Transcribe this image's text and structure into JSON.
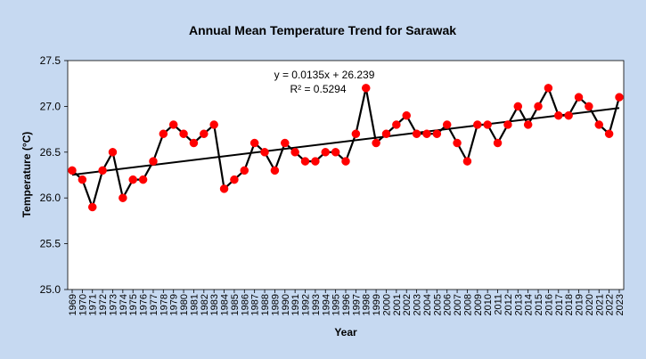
{
  "chart_data": {
    "type": "line",
    "title": "Annual Mean Temperature Trend for Sarawak",
    "xlabel": "Year",
    "ylabel": "Temperature (°C)",
    "ylim": [
      25.0,
      27.5
    ],
    "yticks": [
      "25.0",
      "25.5",
      "26.0",
      "26.5",
      "27.0",
      "27.5"
    ],
    "grid": false,
    "legend": "none",
    "x": [
      "1969",
      "1970",
      "1971",
      "1972",
      "1973",
      "1974",
      "1975",
      "1976",
      "1977",
      "1978",
      "1979",
      "1980",
      "1981",
      "1982",
      "1983",
      "1984",
      "1985",
      "1986",
      "1987",
      "1988",
      "1989",
      "1990",
      "1991",
      "1992",
      "1993",
      "1994",
      "1995",
      "1996",
      "1997",
      "1998",
      "1999",
      "2000",
      "2001",
      "2002",
      "2003",
      "2004",
      "2005",
      "2006",
      "2007",
      "2008",
      "2009",
      "2010",
      "2011",
      "2012",
      "2013",
      "2014",
      "2015",
      "2016",
      "2017",
      "2018",
      "2019",
      "2020",
      "2021",
      "2022",
      "2023"
    ],
    "series": [
      {
        "values": [
          26.3,
          26.2,
          25.9,
          26.3,
          26.5,
          26.0,
          26.2,
          26.2,
          26.4,
          26.7,
          26.8,
          26.7,
          26.6,
          26.7,
          26.8,
          26.1,
          26.2,
          26.3,
          26.6,
          26.5,
          26.3,
          26.6,
          26.5,
          26.4,
          26.4,
          26.5,
          26.5,
          26.4,
          26.7,
          27.2,
          26.6,
          26.7,
          26.8,
          26.9,
          26.7,
          26.7,
          26.7,
          26.8,
          26.6,
          26.4,
          26.8,
          26.8,
          26.6,
          26.8,
          27.0,
          26.8,
          27.0,
          27.2,
          26.9,
          26.9,
          27.1,
          27.0,
          26.8,
          26.7,
          27.1
        ]
      }
    ],
    "trendline": {
      "slope": 0.0135,
      "intercept": 26.239,
      "equation": "y = 0.0135x + 26.239",
      "r_squared": "R² = 0.5294"
    },
    "colors": {
      "background": "#c6d9f1",
      "plot_area": "#ffffff",
      "line": "#000000",
      "marker": "#ff0000"
    }
  }
}
